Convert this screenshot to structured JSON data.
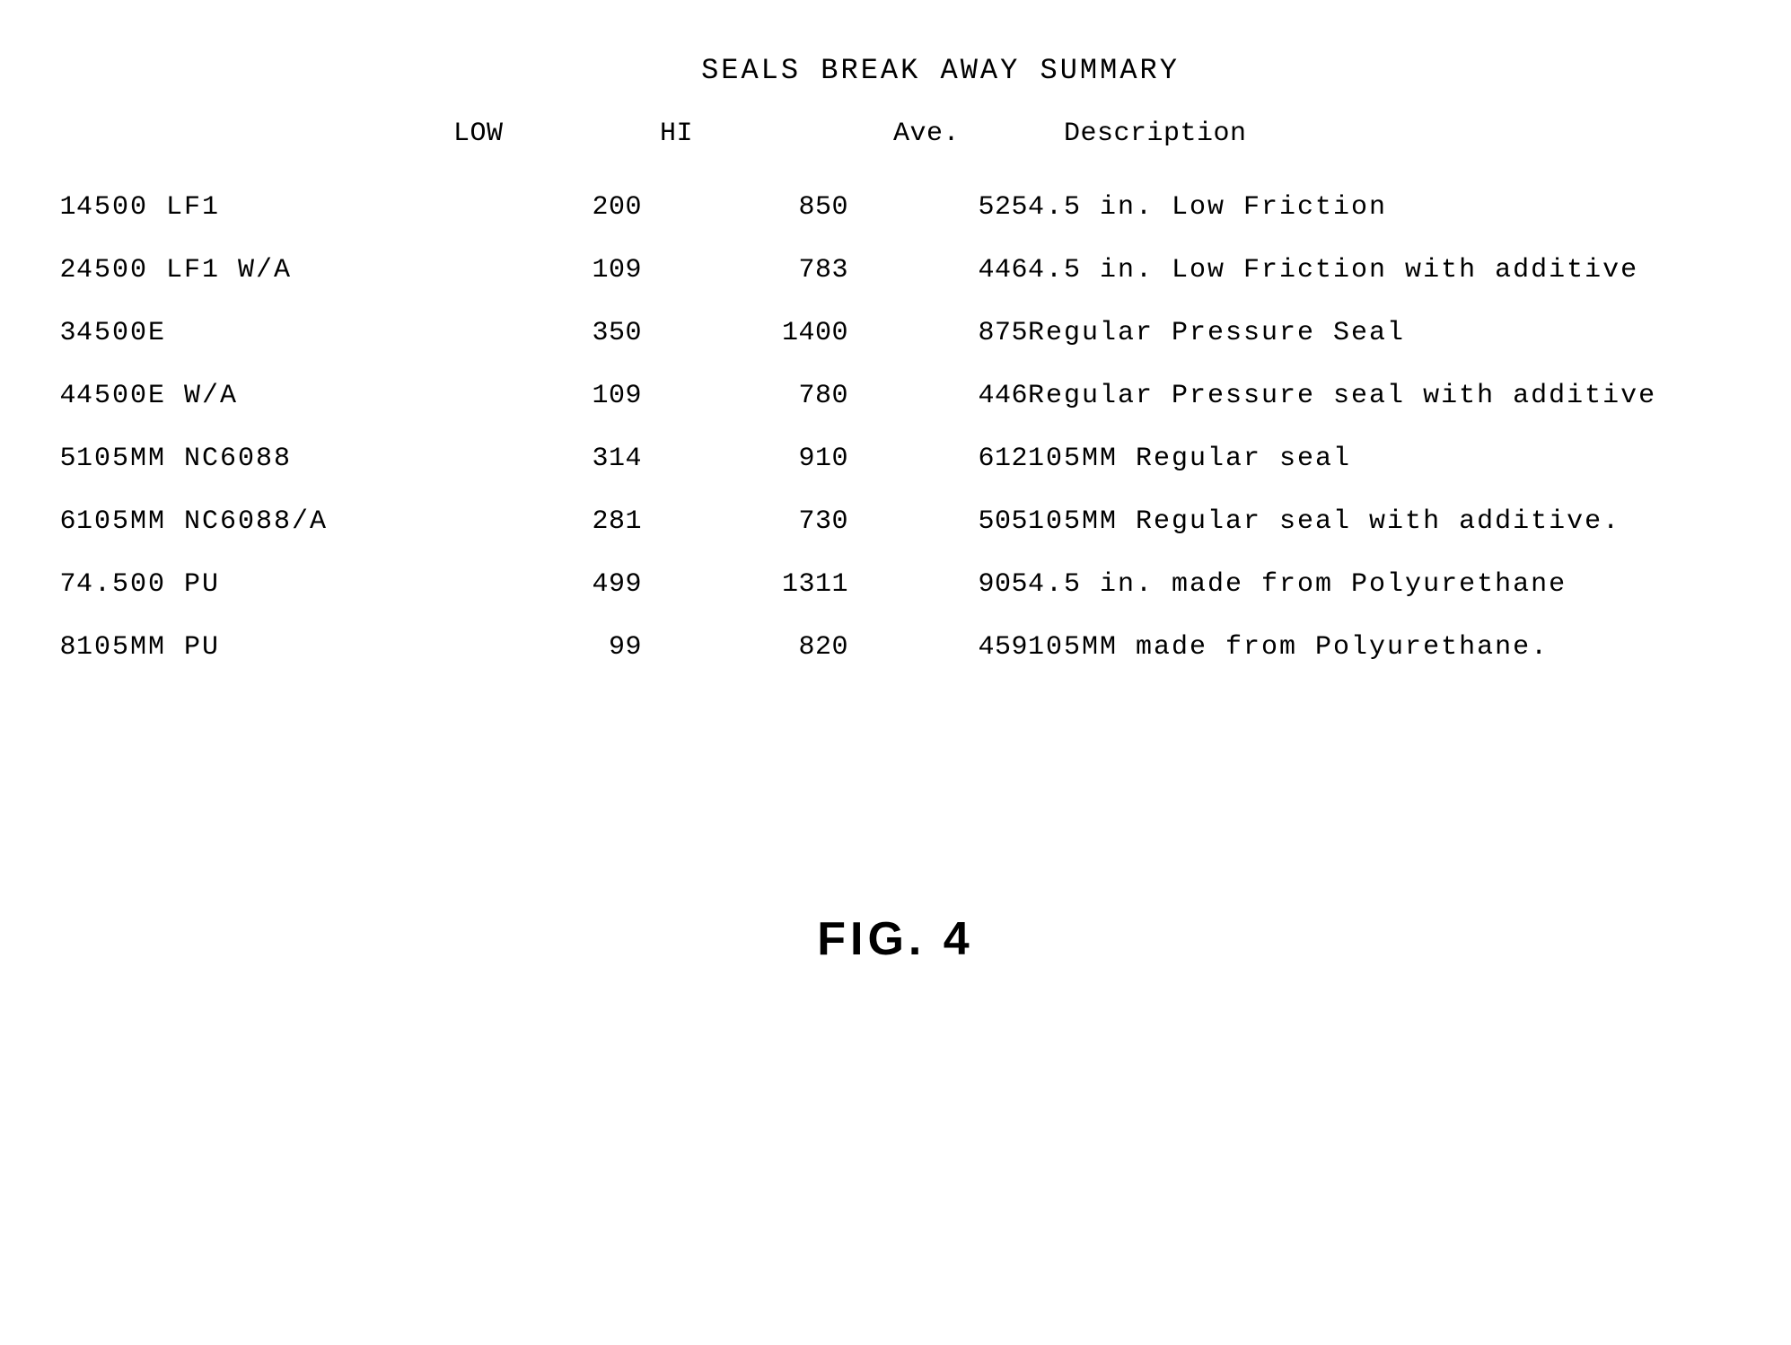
{
  "table": {
    "type": "table",
    "title": "SEALS BREAK AWAY SUMMARY",
    "title_fontsize": 32,
    "columns": {
      "low": "LOW",
      "hi": "HI",
      "ave": "Ave.",
      "description": "Description"
    },
    "header_fontsize": 30,
    "row_fontsize": 30,
    "background_color": "#ffffff",
    "text_color": "#000000",
    "font_family": "Courier New",
    "rows": [
      {
        "num": "1",
        "name": "4500 LF1",
        "low": "200",
        "hi": "850",
        "ave": "525",
        "desc": "4.5 in. Low Friction"
      },
      {
        "num": "2",
        "name": "4500 LF1 W/A",
        "low": "109",
        "hi": "783",
        "ave": "446",
        "desc": "4.5 in. Low Friction with additive"
      },
      {
        "num": "3",
        "name": "4500E",
        "low": "350",
        "hi": "1400",
        "ave": "875",
        "desc": "Regular Pressure Seal"
      },
      {
        "num": "4",
        "name": "4500E W/A",
        "low": "109",
        "hi": "780",
        "ave": "446",
        "desc": "Regular Pressure seal with additive"
      },
      {
        "num": "5",
        "name": "105MM NC6088",
        "low": "314",
        "hi": "910",
        "ave": "612",
        "desc": "105MM Regular seal"
      },
      {
        "num": "6",
        "name": "105MM NC6088/A",
        "low": "281",
        "hi": "730",
        "ave": "505",
        "desc": "105MM Regular seal with additive."
      },
      {
        "num": "7",
        "name": "4.500 PU",
        "low": "499",
        "hi": "1311",
        "ave": "905",
        "desc": "4.5 in. made from Polyurethane"
      },
      {
        "num": "8",
        "name": "105MM PU",
        "low": "99",
        "hi": "820",
        "ave": "459",
        "desc": "105MM made from Polyurethane."
      }
    ]
  },
  "figure_label": "FIG. 4",
  "figure_label_fontsize": 52
}
